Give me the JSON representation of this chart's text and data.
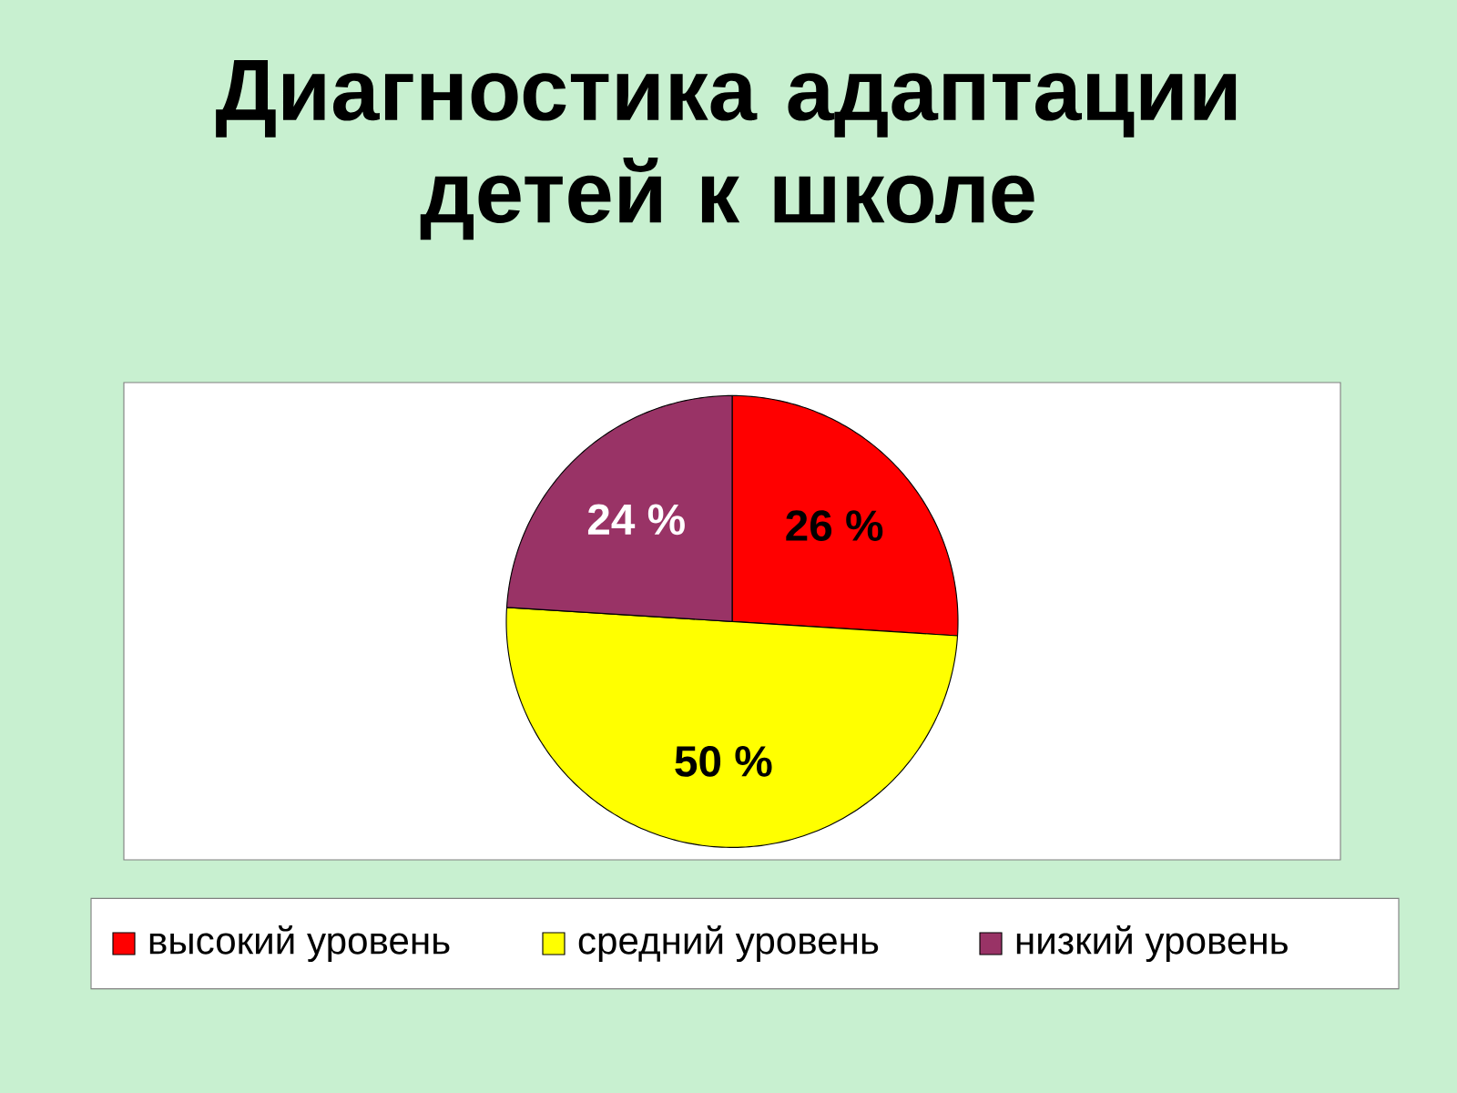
{
  "chart_data": {
    "type": "pie",
    "title": "Диагностика адаптации детей к школе",
    "categories": [
      "высокий уровень",
      "средний уровень",
      "низкий уровень"
    ],
    "values": [
      26,
      50,
      24
    ],
    "value_labels": [
      "26 %",
      "50 %",
      "24 %"
    ],
    "colors": [
      "#ff0000",
      "#ffff00",
      "#993366"
    ],
    "legend": "bottom"
  }
}
